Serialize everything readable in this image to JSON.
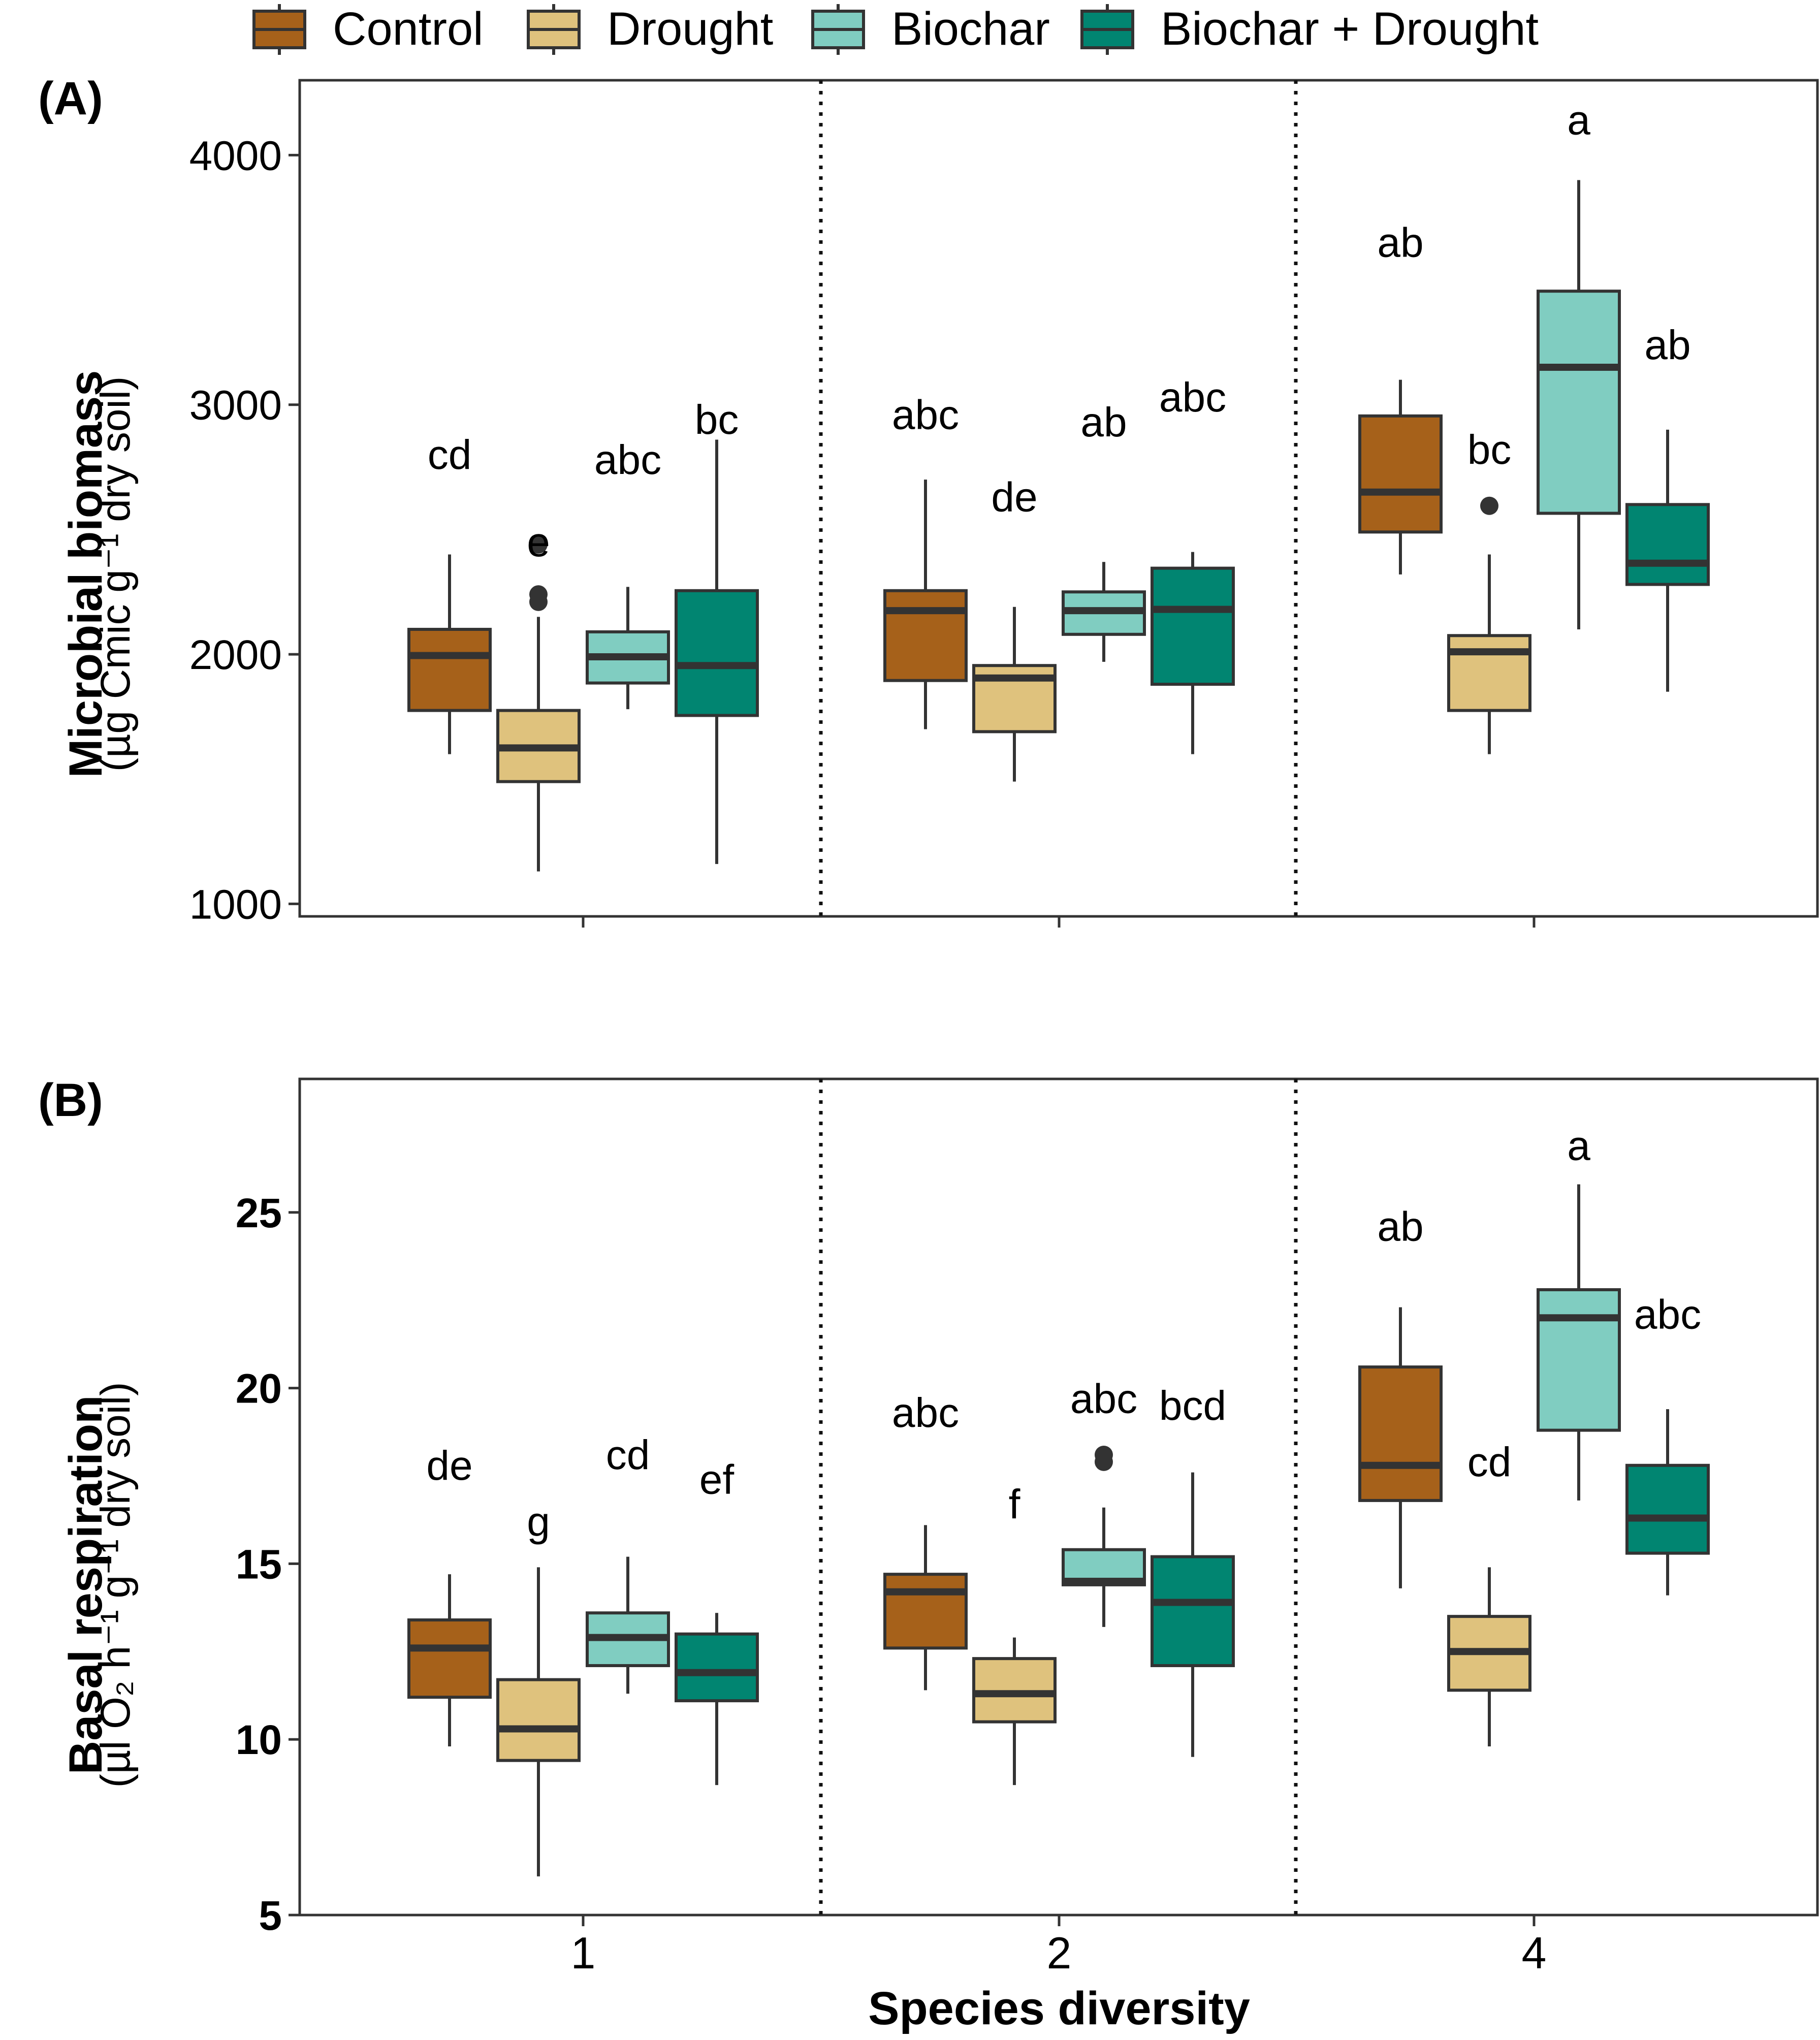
{
  "legend": [
    {
      "name": "Control",
      "color": "#A6611A"
    },
    {
      "name": "Drought",
      "color": "#DFC27D"
    },
    {
      "name": "Biochar",
      "color": "#80CDC1"
    },
    {
      "name": "Biochar + Drought",
      "color": "#018571"
    }
  ],
  "xlabel": "Species diversity",
  "chart_data": [
    {
      "type": "box",
      "panel_label": "(A)",
      "ylabel_main": "Microbial biomass",
      "ylabel_unit": "(µg Cmic g⁻¹ dry soil)",
      "ylim": [
        950,
        4300
      ],
      "yticks": [
        1000,
        2000,
        3000,
        4000
      ],
      "categories": [
        "1",
        "2",
        "4"
      ],
      "series": [
        {
          "name": "Control",
          "color": "#A6611A",
          "boxes": [
            {
              "min": 1600,
              "q1": 1775,
              "median": 1995,
              "q3": 2100,
              "max": 2400,
              "outliers": [],
              "letter": "cd",
              "letter_y": 2800
            },
            {
              "min": 1700,
              "q1": 1895,
              "median": 2175,
              "q3": 2255,
              "max": 2700,
              "outliers": [],
              "letter": "abc",
              "letter_y": 2960
            },
            {
              "min": 2320,
              "q1": 2490,
              "median": 2650,
              "q3": 2955,
              "max": 3100,
              "outliers": [],
              "letter": "ab",
              "letter_y": 3650
            }
          ]
        },
        {
          "name": "Drought",
          "color": "#DFC27D",
          "boxes": [
            {
              "min": 1130,
              "q1": 1490,
              "median": 1625,
              "q3": 1775,
              "max": 2150,
              "outliers": [
                2210,
                2240,
                2440
              ],
              "letter": "e",
              "letter_y": 2450
            },
            {
              "min": 1490,
              "q1": 1690,
              "median": 1905,
              "q3": 1955,
              "max": 2190,
              "outliers": [],
              "letter": "de",
              "letter_y": 2630
            },
            {
              "min": 1600,
              "q1": 1775,
              "median": 2010,
              "q3": 2075,
              "max": 2400,
              "outliers": [
                2595
              ],
              "letter": "bc",
              "letter_y": 2820
            }
          ]
        },
        {
          "name": "Biochar",
          "color": "#80CDC1",
          "boxes": [
            {
              "min": 1780,
              "q1": 1885,
              "median": 1990,
              "q3": 2090,
              "max": 2270,
              "outliers": [],
              "letter": "abc",
              "letter_y": 2780
            },
            {
              "min": 1970,
              "q1": 2080,
              "median": 2175,
              "q3": 2250,
              "max": 2370,
              "outliers": [],
              "letter": "ab",
              "letter_y": 2930
            },
            {
              "min": 2100,
              "q1": 2565,
              "median": 3150,
              "q3": 3455,
              "max": 3900,
              "outliers": [],
              "letter": "a",
              "letter_y": 4140
            }
          ]
        },
        {
          "name": "Biochar + Drought",
          "color": "#018571",
          "boxes": [
            {
              "min": 1160,
              "q1": 1755,
              "median": 1955,
              "q3": 2255,
              "max": 2860,
              "outliers": [],
              "letter": "bc",
              "letter_y": 2940
            },
            {
              "min": 1600,
              "q1": 1880,
              "median": 2180,
              "q3": 2345,
              "max": 2410,
              "outliers": [],
              "letter": "abc",
              "letter_y": 3030
            },
            {
              "min": 1850,
              "q1": 2280,
              "median": 2365,
              "q3": 2600,
              "max": 2900,
              "outliers": [],
              "letter": "ab",
              "letter_y": 3240
            }
          ]
        }
      ]
    },
    {
      "type": "box",
      "panel_label": "(B)",
      "ylabel_main": "Basal respiration",
      "ylabel_unit": "(µl O₂ h⁻¹ g⁻¹ dry soil)",
      "ylim": [
        5,
        28.8
      ],
      "yticks": [
        5,
        10,
        15,
        20,
        25
      ],
      "categories": [
        "1",
        "2",
        "4"
      ],
      "series": [
        {
          "name": "Control",
          "color": "#A6611A",
          "boxes": [
            {
              "min": 9.8,
              "q1": 11.2,
              "median": 12.6,
              "q3": 13.4,
              "max": 14.7,
              "outliers": [],
              "letter": "de",
              "letter_y": 17.8
            },
            {
              "min": 11.4,
              "q1": 12.6,
              "median": 14.2,
              "q3": 14.7,
              "max": 16.1,
              "outliers": [],
              "letter": "abc",
              "letter_y": 19.3
            },
            {
              "min": 14.3,
              "q1": 16.8,
              "median": 17.8,
              "q3": 20.6,
              "max": 22.3,
              "outliers": [],
              "letter": "ab",
              "letter_y": 24.6
            }
          ]
        },
        {
          "name": "Drought",
          "color": "#DFC27D",
          "boxes": [
            {
              "min": 6.1,
              "q1": 9.4,
              "median": 10.3,
              "q3": 11.7,
              "max": 14.9,
              "outliers": [],
              "letter": "g",
              "letter_y": 16.2
            },
            {
              "min": 8.7,
              "q1": 10.5,
              "median": 11.3,
              "q3": 12.3,
              "max": 12.9,
              "outliers": [],
              "letter": "f",
              "letter_y": 16.7
            },
            {
              "min": 9.8,
              "q1": 11.4,
              "median": 12.5,
              "q3": 13.5,
              "max": 14.9,
              "outliers": [],
              "letter": "cd",
              "letter_y": 17.9
            }
          ]
        },
        {
          "name": "Biochar",
          "color": "#80CDC1",
          "boxes": [
            {
              "min": 11.3,
              "q1": 12.1,
              "median": 12.9,
              "q3": 13.6,
              "max": 15.2,
              "outliers": [],
              "letter": "cd",
              "letter_y": 18.1
            },
            {
              "min": 13.2,
              "q1": 14.4,
              "median": 14.5,
              "q3": 15.4,
              "max": 16.6,
              "outliers": [
                17.9,
                18.1
              ],
              "letter": "abc",
              "letter_y": 19.7
            },
            {
              "min": 16.8,
              "q1": 18.8,
              "median": 22.0,
              "q3": 22.8,
              "max": 25.8,
              "outliers": [],
              "letter": "a",
              "letter_y": 26.9
            }
          ]
        },
        {
          "name": "Biochar + Drought",
          "color": "#018571",
          "boxes": [
            {
              "min": 8.7,
              "q1": 11.1,
              "median": 11.9,
              "q3": 13.0,
              "max": 13.6,
              "outliers": [],
              "letter": "ef",
              "letter_y": 17.4
            },
            {
              "min": 9.5,
              "q1": 12.1,
              "median": 13.9,
              "q3": 15.2,
              "max": 17.6,
              "outliers": [],
              "letter": "bcd",
              "letter_y": 19.5
            },
            {
              "min": 14.1,
              "q1": 15.3,
              "median": 16.3,
              "q3": 17.8,
              "max": 19.4,
              "outliers": [],
              "letter": "abc",
              "letter_y": 22.1
            }
          ]
        }
      ]
    }
  ]
}
